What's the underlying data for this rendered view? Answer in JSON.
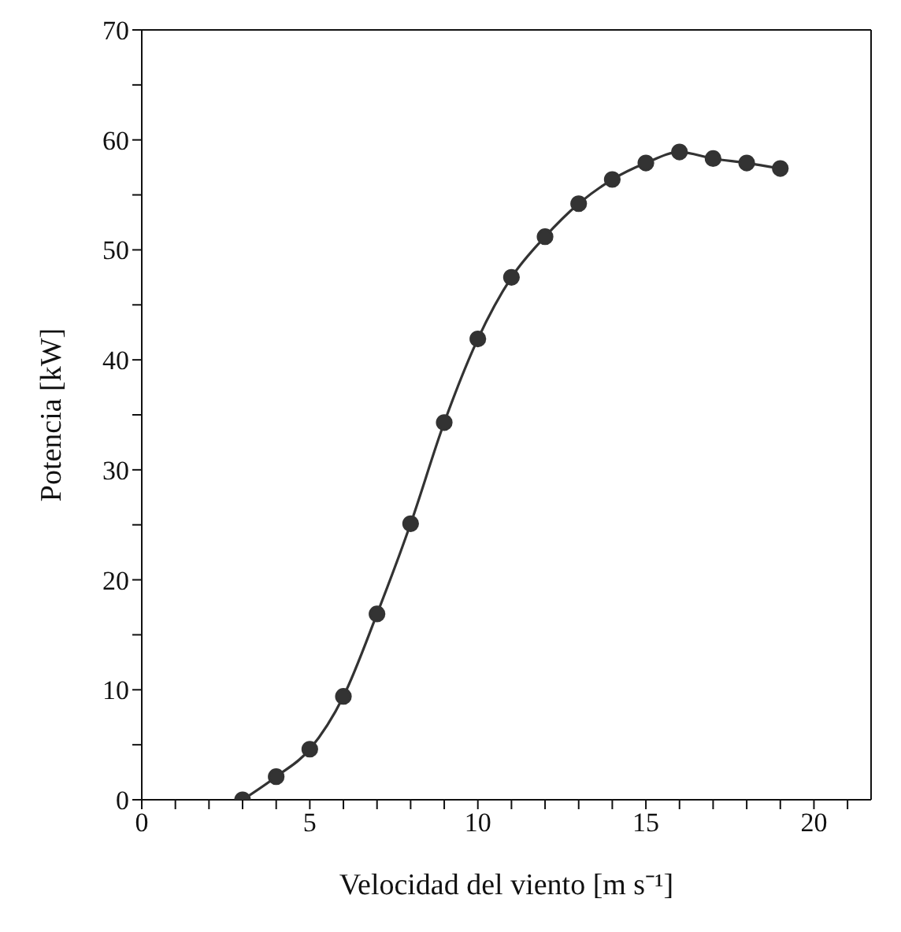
{
  "chart_data": {
    "type": "line",
    "xlabel": "Velocidad del viento [m s⁻¹]",
    "ylabel": "Potencia [kW]",
    "x": [
      3,
      4,
      5,
      6,
      7,
      8,
      9,
      10,
      11,
      12,
      13,
      14,
      15,
      16,
      17,
      18,
      19
    ],
    "series": [
      {
        "color": "#333333",
        "values": [
          0,
          2.1,
          4.6,
          9.4,
          16.9,
          25.1,
          34.3,
          41.9,
          47.5,
          51.2,
          54.2,
          56.4,
          57.9,
          58.9,
          58.3,
          57.9,
          57.4
        ]
      }
    ],
    "xlim": [
      0,
      21.7
    ],
    "xticks": [
      0,
      {
        "value": 1,
        "label": null
      },
      {
        "value": 2,
        "label": null
      },
      {
        "value": 3,
        "label": null
      },
      {
        "value": 4,
        "label": null
      },
      5,
      {
        "value": 6,
        "label": null
      },
      {
        "value": 7,
        "label": null
      },
      {
        "value": 8,
        "label": null
      },
      {
        "value": 9,
        "label": null
      },
      10,
      {
        "value": 11,
        "label": null
      },
      {
        "value": 12,
        "label": null
      },
      {
        "value": 13,
        "label": null
      },
      {
        "value": 14,
        "label": null
      },
      15,
      {
        "value": 16,
        "label": null
      },
      {
        "value": 17,
        "label": null
      },
      {
        "value": 18,
        "label": null
      },
      {
        "value": 19,
        "label": null
      },
      20,
      {
        "value": 21,
        "label": null
      }
    ],
    "ylim": [
      0,
      70
    ],
    "yticks": [
      0,
      {
        "value": 5,
        "label": null
      },
      10,
      {
        "value": 15,
        "label": null
      },
      20,
      {
        "value": 25,
        "label": null
      },
      30,
      {
        "value": 35,
        "label": null
      },
      40,
      {
        "value": 45,
        "label": null
      },
      50,
      {
        "value": 55,
        "label": null
      },
      60,
      {
        "value": 65,
        "label": null
      },
      70
    ],
    "marker": "circle",
    "line_style": "solid",
    "grid": false,
    "legend": false
  }
}
